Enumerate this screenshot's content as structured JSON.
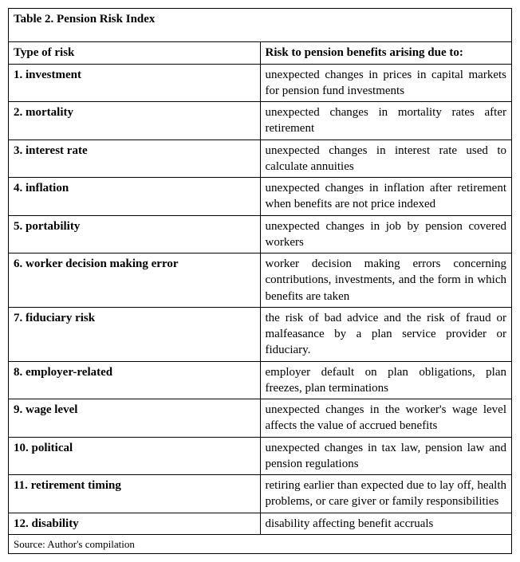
{
  "table": {
    "title": "Table 2. Pension Risk Index",
    "header_left": "Type of risk",
    "header_right": "Risk to pension benefits arising due to:",
    "rows": [
      {
        "type": "1. investment",
        "desc": "unexpected changes in prices in capital markets for pension fund investments"
      },
      {
        "type": "2. mortality",
        "desc": "unexpected changes in mortality rates after retirement"
      },
      {
        "type": "3. interest rate",
        "desc": "unexpected changes in interest rate used to calculate annuities"
      },
      {
        "type": "4. inflation",
        "desc": "unexpected changes in inflation after retirement when benefits are not price indexed"
      },
      {
        "type": "5. portability",
        "desc": "unexpected changes in job by pension covered workers"
      },
      {
        "type": "6. worker decision making error",
        "desc": "worker decision making errors concerning contributions, investments, and the form in which benefits are taken"
      },
      {
        "type": "7. fiduciary risk",
        "desc": "the risk of bad advice and the risk of fraud or malfeasance by a plan service provider or fiduciary."
      },
      {
        "type": "8. employer-related",
        "desc": "employer default on plan obligations, plan freezes, plan terminations"
      },
      {
        "type": "9. wage level",
        "desc": "unexpected changes in the worker's wage level affects the value of accrued benefits"
      },
      {
        "type": "10. political",
        "desc": "unexpected changes in tax law, pension law and pension regulations"
      },
      {
        "type": "11. retirement timing",
        "desc": "retiring earlier than expected due to lay off, health problems, or care giver or family responsibilities"
      },
      {
        "type": "12. disability",
        "desc": "disability affecting benefit accruals"
      }
    ],
    "source": "Source: Author's compilation"
  }
}
